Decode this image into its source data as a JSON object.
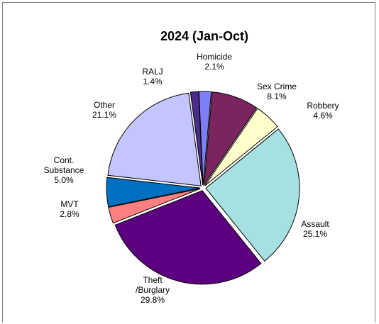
{
  "chart_data": {
    "type": "pie",
    "title": "2024 (Jan-Oct)",
    "slices": [
      {
        "name": [
          "Homicide"
        ],
        "value": 2.1,
        "label": "2.1%",
        "color": "#7f7ff5"
      },
      {
        "name": [
          "Sex Crime"
        ],
        "value": 8.1,
        "label": "8.1%",
        "color": "#7a2460"
      },
      {
        "name": [
          "Robbery"
        ],
        "value": 4.6,
        "label": "4.6%",
        "color": "#ffffcc"
      },
      {
        "name": [
          "Assault"
        ],
        "value": 25.1,
        "label": "25.1%",
        "color": "#a6e0e0"
      },
      {
        "name": [
          "Theft",
          "/Burglary"
        ],
        "value": 29.8,
        "label": "29.8%",
        "color": "#5c0080"
      },
      {
        "name": [
          "MVT"
        ],
        "value": 2.8,
        "label": "2.8%",
        "color": "#ff8080"
      },
      {
        "name": [
          "Cont.",
          "Substance"
        ],
        "value": 5.0,
        "label": "5.0%",
        "color": "#0070c0"
      },
      {
        "name": [
          "Other"
        ],
        "value": 21.1,
        "label": "21.1%",
        "color": "#c4c4ff"
      },
      {
        "name": [
          "RALJ"
        ],
        "value": 1.4,
        "label": "1.4%",
        "color": "#4a2c8a"
      }
    ],
    "exploded": true,
    "legend": "none",
    "data_labels": "category-and-percent"
  }
}
